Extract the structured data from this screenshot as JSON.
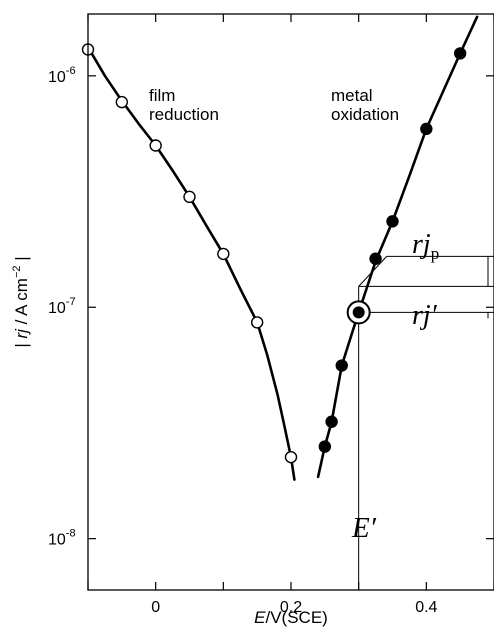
{
  "chart_data": {
    "type": "scatter",
    "title": "",
    "xlabel": {
      "italic": "E",
      "rest": "/V(SCE)"
    },
    "ylabel": {
      "pre": "| ",
      "italic": "rj",
      "rest": " / A cm",
      "sup": "−2",
      "post": " |"
    },
    "xlim": [
      -0.1,
      0.5
    ],
    "ylim": [
      6e-09,
      1.85e-06
    ],
    "yscale": "log",
    "grid": false,
    "x_ticks": [
      {
        "value": -0.1,
        "label": ""
      },
      {
        "value": 0.0,
        "label": "0"
      },
      {
        "value": 0.1,
        "label": ""
      },
      {
        "value": 0.2,
        "label": "0.2"
      },
      {
        "value": 0.3,
        "label": ""
      },
      {
        "value": 0.4,
        "label": "0.4"
      },
      {
        "value": 0.5,
        "label": ""
      }
    ],
    "y_ticks": [
      {
        "value": 1e-08,
        "base": "10",
        "exp": "-8"
      },
      {
        "value": 1e-07,
        "base": "10",
        "exp": "-7"
      },
      {
        "value": 1e-06,
        "base": "10",
        "exp": "-6"
      }
    ],
    "series": [
      {
        "name": "film reduction",
        "marker": "open-circle",
        "x": [
          -0.1,
          -0.05,
          0.0,
          0.05,
          0.1,
          0.15,
          0.2
        ],
        "y": [
          1.3e-06,
          7.7e-07,
          5e-07,
          3e-07,
          1.7e-07,
          8.6e-08,
          2.25e-08
        ],
        "curve_x": [
          -0.1,
          -0.075,
          -0.05,
          -0.025,
          0.0,
          0.025,
          0.05,
          0.075,
          0.1,
          0.125,
          0.15,
          0.165,
          0.18,
          0.19,
          0.2,
          0.205
        ],
        "curve_y": [
          1.33e-06,
          1e-06,
          7.8e-07,
          6.2e-07,
          5e-07,
          3.9e-07,
          3e-07,
          2.25e-07,
          1.7e-07,
          1.2e-07,
          8.6e-08,
          6.2e-08,
          4.2e-08,
          3.1e-08,
          2.25e-08,
          1.8e-08
        ]
      },
      {
        "name": "metal oxidation",
        "marker": "filled-circle",
        "x": [
          0.25,
          0.26,
          0.275,
          0.3,
          0.325,
          0.35,
          0.4,
          0.45
        ],
        "y": [
          2.5e-08,
          3.2e-08,
          5.6e-08,
          9.5e-08,
          1.62e-07,
          2.35e-07,
          5.9e-07,
          1.25e-06
        ],
        "curve_x": [
          0.24,
          0.25,
          0.26,
          0.275,
          0.29,
          0.3,
          0.325,
          0.35,
          0.375,
          0.4,
          0.425,
          0.45,
          0.475
        ],
        "curve_y": [
          1.85e-08,
          2.5e-08,
          3.2e-08,
          5.6e-08,
          7.7e-08,
          9.5e-08,
          1.58e-07,
          2.35e-07,
          3.7e-07,
          5.9e-07,
          8.6e-07,
          1.25e-06,
          1.8e-06
        ]
      }
    ],
    "annotations": {
      "film_label": [
        "film",
        "reduction"
      ],
      "metal_label": [
        "metal",
        "oxidation"
      ],
      "e_prime": "E′",
      "rj_p": {
        "main": "rj",
        "sub": "p"
      },
      "rj_prime": "rj′",
      "highlight_point": {
        "x": 0.3,
        "y": 9.5e-08
      }
    }
  }
}
